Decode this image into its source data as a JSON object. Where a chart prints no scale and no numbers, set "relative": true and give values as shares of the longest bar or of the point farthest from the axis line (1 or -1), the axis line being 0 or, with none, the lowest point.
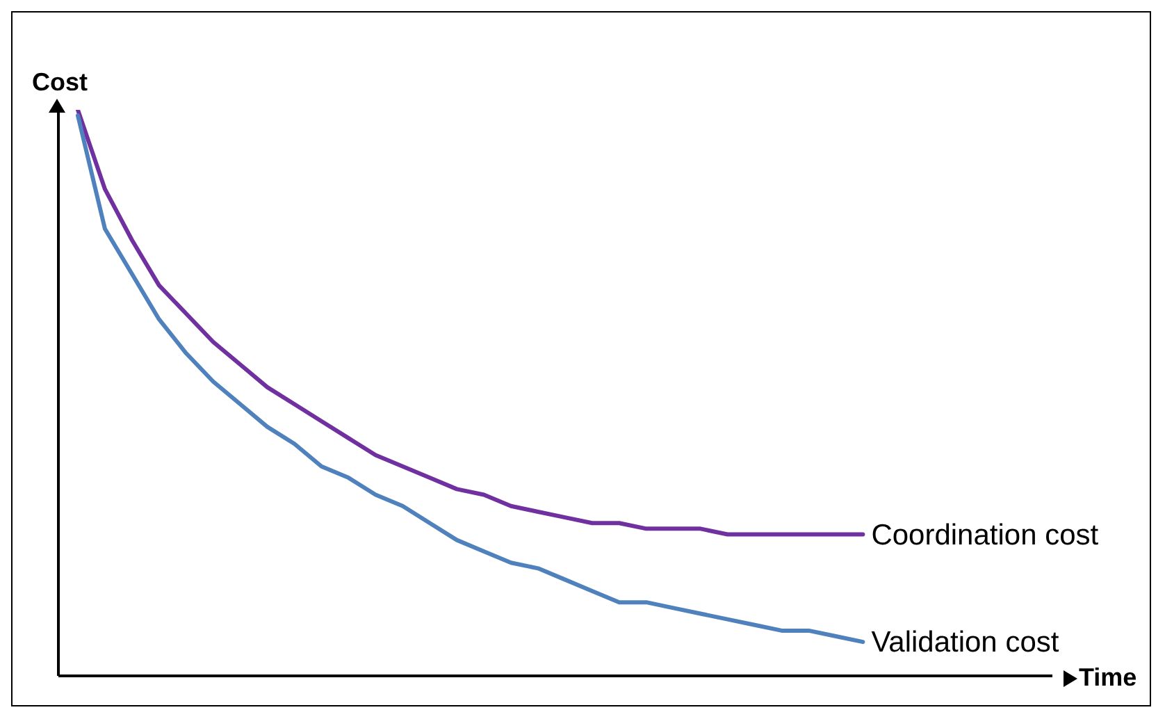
{
  "chart_data": {
    "type": "line",
    "relative": true,
    "xlabel": "Time",
    "ylabel": "Cost",
    "categories": [
      null,
      null,
      null,
      null,
      null,
      null,
      null,
      null,
      null,
      null,
      null,
      null,
      null,
      null,
      null,
      null,
      null,
      null,
      null,
      null,
      null,
      null,
      null,
      null,
      null,
      null,
      null,
      null,
      null,
      null,
      null,
      null,
      null,
      null,
      null,
      null,
      null
    ],
    "series": [
      {
        "name": "Coordination cost",
        "color": "#7030a0",
        "values": [
          1,
          0.86,
          0.77,
          0.69,
          0.64,
          0.59,
          0.55,
          0.51,
          0.48,
          0.45,
          0.42,
          0.39,
          0.37,
          0.35,
          0.33,
          0.32,
          0.3,
          0.29,
          0.28,
          0.27,
          0.27,
          0.26,
          0.26,
          0.26,
          0.25,
          0.25,
          0.25,
          0.25,
          0.25,
          0.25,
          null,
          null,
          null,
          null,
          null,
          null,
          null
        ]
      },
      {
        "name": "Validation cost",
        "color": "#4f81bd",
        "values": [
          0.99,
          0.79,
          0.71,
          0.63,
          0.57,
          0.52,
          0.48,
          0.44,
          0.41,
          0.37,
          0.35,
          0.32,
          0.3,
          0.27,
          0.24,
          0.22,
          0.2,
          0.19,
          0.17,
          0.15,
          0.13,
          0.13,
          0.12,
          0.11,
          0.1,
          0.09,
          0.08,
          0.08,
          0.07,
          0.06,
          null,
          null,
          null,
          null,
          null,
          null,
          null
        ]
      }
    ]
  }
}
